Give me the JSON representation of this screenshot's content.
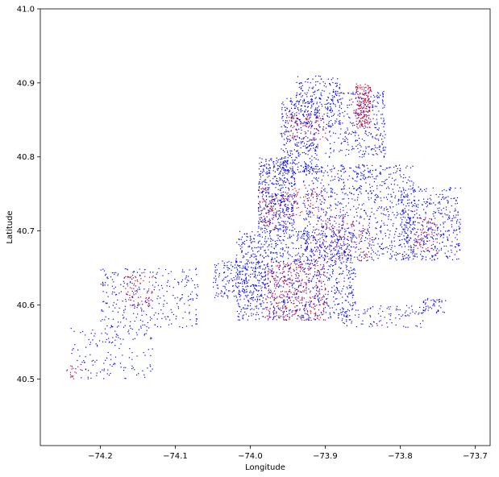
{
  "chart_data": {
    "type": "scatter",
    "title": "",
    "xlabel": "Longitude",
    "ylabel": "Latitude",
    "xlim": [
      -74.28,
      -73.68
    ],
    "ylim": [
      40.41,
      41.0
    ],
    "xticks": [
      -74.2,
      -74.1,
      -74.0,
      -73.9,
      -73.8,
      -73.7
    ],
    "xtick_labels": [
      "−74.2",
      "−74.1",
      "−74.0",
      "−73.9",
      "−73.8",
      "−73.7"
    ],
    "yticks": [
      40.5,
      40.6,
      40.7,
      40.8,
      40.9,
      41.0
    ],
    "ytick_labels": [
      "40.5",
      "40.6",
      "40.7",
      "40.8",
      "40.9",
      "41.0"
    ],
    "grid": false,
    "legend": "none",
    "colors": {
      "blue": "#0000ff",
      "red": "#cc0022"
    },
    "series": [
      {
        "color": "#0000ff",
        "regions": [
          {
            "x": [
              -73.99,
              -73.94
            ],
            "y": [
              40.7,
              40.8
            ],
            "n": 500
          },
          {
            "x": [
              -73.96,
              -73.91
            ],
            "y": [
              40.78,
              40.88
            ],
            "n": 350
          },
          {
            "x": [
              -73.94,
              -73.88
            ],
            "y": [
              40.84,
              40.91
            ],
            "n": 200
          },
          {
            "x": [
              -73.9,
              -73.82
            ],
            "y": [
              40.8,
              40.89
            ],
            "n": 350
          },
          {
            "x": [
              -74.02,
              -73.86
            ],
            "y": [
              40.58,
              40.7
            ],
            "n": 1100
          },
          {
            "x": [
              -73.93,
              -73.78
            ],
            "y": [
              40.66,
              40.79
            ],
            "n": 900
          },
          {
            "x": [
              -73.8,
              -73.72
            ],
            "y": [
              40.66,
              40.76
            ],
            "n": 400
          },
          {
            "x": [
              -74.05,
              -73.98
            ],
            "y": [
              40.61,
              40.66
            ],
            "n": 200
          },
          {
            "x": [
              -74.2,
              -74.07
            ],
            "y": [
              40.57,
              40.65
            ],
            "n": 300
          },
          {
            "x": [
              -74.24,
              -74.13
            ],
            "y": [
              40.5,
              40.57
            ],
            "n": 150
          },
          {
            "x": [
              -73.88,
              -73.77
            ],
            "y": [
              40.57,
              40.6
            ],
            "n": 100
          },
          {
            "x": [
              -73.77,
              -73.74
            ],
            "y": [
              40.59,
              40.61
            ],
            "n": 50
          },
          {
            "x": [
              -73.86,
              -73.84
            ],
            "y": [
              40.77,
              40.79
            ],
            "n": 20
          }
        ]
      },
      {
        "color": "#cc0022",
        "regions": [
          {
            "x": [
              -73.86,
              -73.84
            ],
            "y": [
              40.84,
              40.9
            ],
            "n": 180
          },
          {
            "x": [
              -73.95,
              -73.9
            ],
            "y": [
              40.82,
              40.86
            ],
            "n": 80
          },
          {
            "x": [
              -73.99,
              -73.95
            ],
            "y": [
              40.7,
              40.76
            ],
            "n": 80
          },
          {
            "x": [
              -73.98,
              -73.9
            ],
            "y": [
              40.58,
              40.66
            ],
            "n": 300
          },
          {
            "x": [
              -73.95,
              -73.9
            ],
            "y": [
              40.72,
              40.76
            ],
            "n": 60
          },
          {
            "x": [
              -73.78,
              -73.75
            ],
            "y": [
              40.67,
              40.72
            ],
            "n": 60
          },
          {
            "x": [
              -74.17,
              -74.13
            ],
            "y": [
              40.6,
              40.64
            ],
            "n": 60
          },
          {
            "x": [
              -74.25,
              -74.23
            ],
            "y": [
              40.5,
              40.52
            ],
            "n": 15
          },
          {
            "x": [
              -73.92,
              -73.84
            ],
            "y": [
              40.66,
              40.72
            ],
            "n": 100
          }
        ]
      }
    ]
  }
}
